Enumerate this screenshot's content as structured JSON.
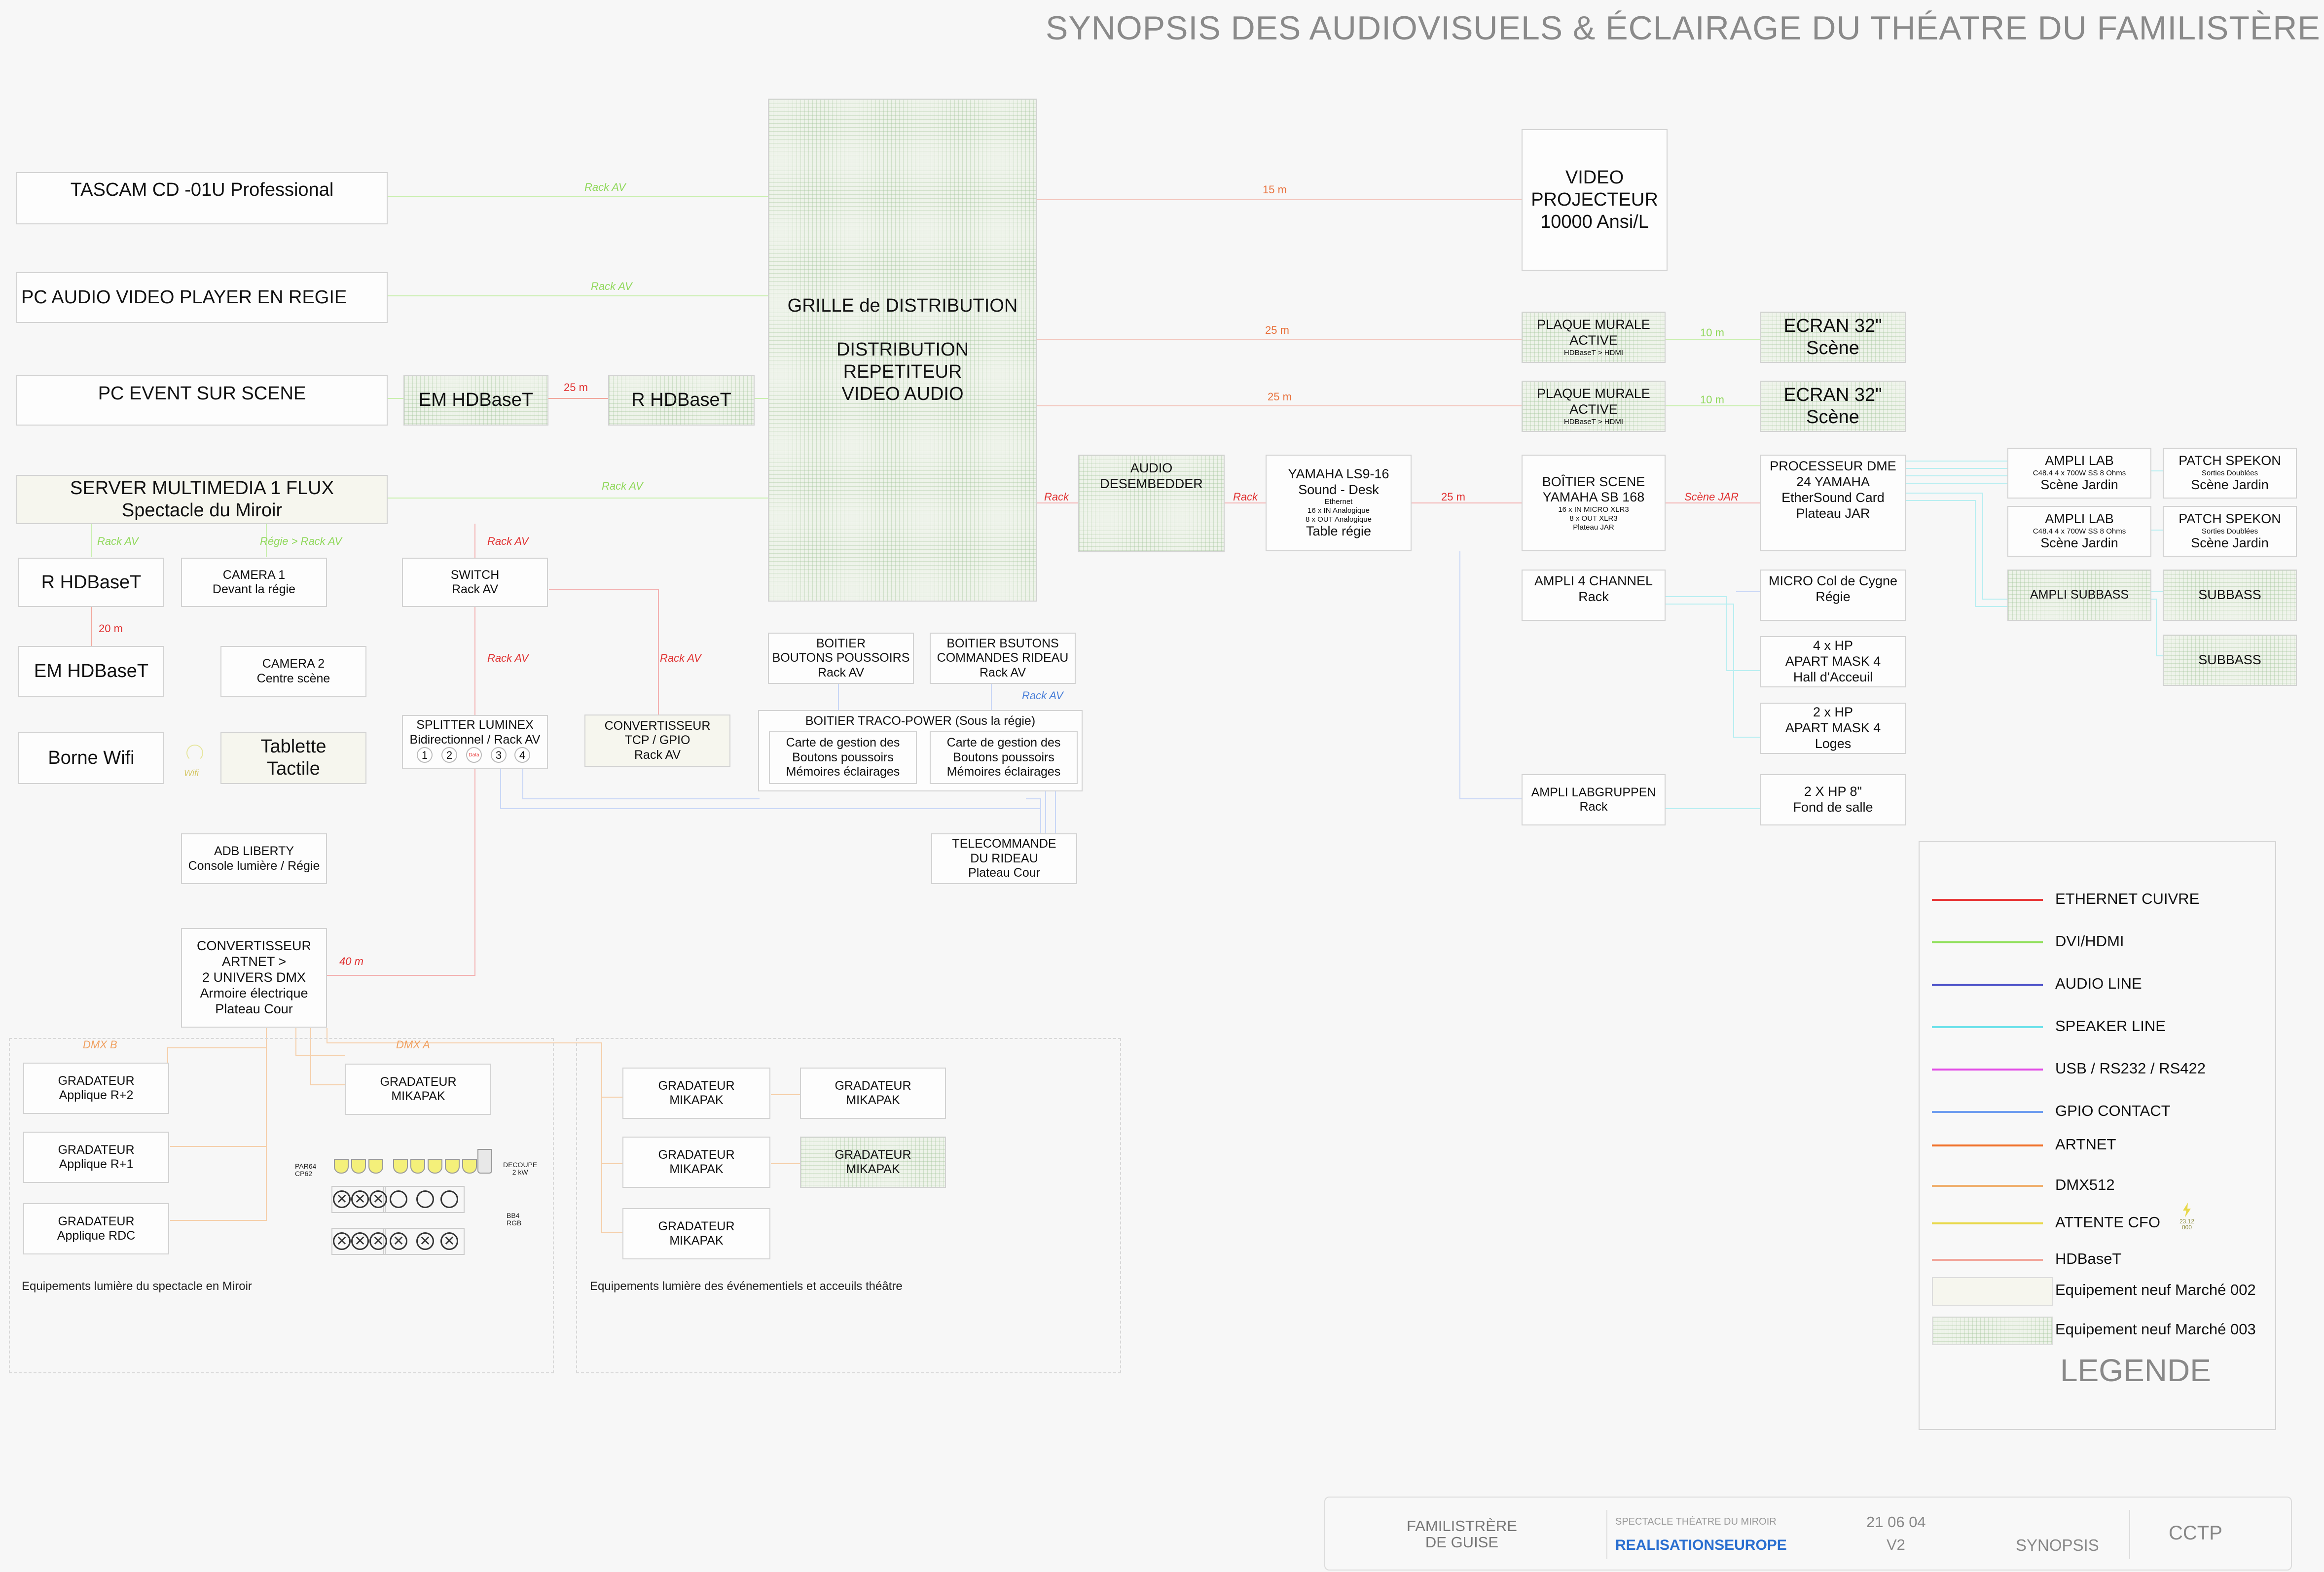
{
  "title": "SYNOPSIS DES AUDIOVISUELS & ÉCLAIRAGE DU THÉATRE  DU FAMILISTÈRE",
  "colors": {
    "ethernet": "#e83a3a",
    "dvi": "#8fe05a",
    "audio": "#4a4fc8",
    "speaker": "#6fe2ea",
    "usb": "#e24be6",
    "gpio": "#6f9ef0",
    "artnet": "#f0712a",
    "dmx": "#f0b070",
    "cfo": "#e8d84a",
    "hdbaset": "#f2a79c"
  },
  "boxes": {
    "tascam": "TASCAM CD -01U Professional",
    "pc_audio": "PC AUDIO VIDEO PLAYER EN REGIE",
    "pc_event": "PC  EVENT  SUR SCENE",
    "em_hdbaset_top": "EM HDBaseT",
    "r_hdbaset_top": "R HDBaseT",
    "server": [
      "SERVER MULTIMEDIA 1 FLUX",
      "Spectacle du Miroir"
    ],
    "r_hdbaset": "R HDBaseT",
    "em_hdbaset": "EM HDBaseT",
    "borne_wifi": "Borne Wifi",
    "camera1": [
      "CAMERA 1",
      "Devant la régie"
    ],
    "camera2": [
      "CAMERA 2",
      "Centre scène"
    ],
    "tablette": [
      "Tablette",
      "Tactile"
    ],
    "switch": [
      "SWITCH",
      "Rack AV"
    ],
    "splitter": [
      "SPLITTER LUMINEX",
      "Bidirectionnel / Rack AV"
    ],
    "splitter_ports": [
      "1",
      "2",
      "Data",
      "3",
      "4"
    ],
    "convertisseur_tcp": [
      "CONVERTISSEUR",
      "TCP / GPIO",
      "Rack AV"
    ],
    "adb": [
      "ADB LIBERTY",
      "Console lumière / Régie"
    ],
    "convertisseur_artnet": [
      "CONVERTISSEUR",
      "ARTNET >",
      "2 UNIVERS DMX",
      "Armoire électrique",
      "Plateau Cour"
    ],
    "grille": [
      "GRILLE de DISTRIBUTION",
      "",
      "DISTRIBUTION",
      "REPETITEUR",
      "VIDEO AUDIO"
    ],
    "boitier_poussoirs": [
      "BOITIER",
      "BOUTONS POUSSOIRS",
      "Rack AV"
    ],
    "boitier_rideau": [
      "BOITIER BSUTONS",
      "COMMANDES RIDEAU",
      "Rack AV"
    ],
    "traco": "BOITIER TRACO-POWER (Sous la régie)",
    "carte1": [
      "Carte de gestion des",
      "Boutons poussoirs",
      "Mémoires éclairages"
    ],
    "carte2": [
      "Carte de gestion des",
      "Boutons poussoirs",
      "Mémoires éclairages"
    ],
    "telecommande": [
      "TELECOMMANDE",
      "DU RIDEAU",
      "Plateau Cour"
    ],
    "audio_desembedder": [
      "AUDIO",
      "DESEMBEDDER"
    ],
    "yamaha_ls9": [
      "YAMAHA LS9-16",
      "Sound - Desk",
      "Ethernet",
      "16 x IN Analogique",
      "8 x OUT Analogique",
      "Table régie"
    ],
    "video_projecteur": [
      "VIDEO",
      "PROJECTEUR",
      "10000 Ansi/L"
    ],
    "plaque1": [
      "PLAQUE MURALE",
      "ACTIVE",
      "HDBaseT > HDMI"
    ],
    "plaque2": [
      "PLAQUE MURALE",
      "ACTIVE",
      "HDBaseT > HDMI"
    ],
    "ecran1": [
      "ECRAN 32\"",
      "Scène"
    ],
    "ecran2": [
      "ECRAN 32\"",
      "Scène"
    ],
    "boitier_scene": [
      "BOÎTIER SCENE",
      "YAMAHA SB 168",
      "16 x IN MICRO XLR3",
      "8 x OUT XLR3",
      "Plateau JAR"
    ],
    "processeur": [
      "PROCESSEUR DME",
      "24 YAMAHA",
      "EtherSound Card",
      "Plateau JAR"
    ],
    "ampli4": [
      "AMPLI 4 CHANNEL",
      "Rack"
    ],
    "micro": [
      "MICRO Col de Cygne",
      "Régie"
    ],
    "hp_hall": [
      "4 x HP",
      "APART MASK 4",
      "Hall d'Acceuil"
    ],
    "hp_loges": [
      "2 x HP",
      "APART MASK 4",
      "Loges"
    ],
    "ampli_labgruppen": [
      "AMPLI LABGRUPPEN",
      "Rack"
    ],
    "hp_salle": [
      "2 X HP 8\"",
      "Fond de salle"
    ],
    "ampli_lab1": [
      "AMPLI LAB",
      "C48.4 4 x 700W SS 8 Ohms",
      "Scène Jardin"
    ],
    "ampli_lab2": [
      "AMPLI LAB",
      "C48.4 4 x 700W SS 8 Ohms",
      "Scène Jardin"
    ],
    "patch1": [
      "PATCH SPEKON",
      "Sorties Doublées",
      "Scène Jardin"
    ],
    "patch2": [
      "PATCH SPEKON",
      "Sorties Doublées",
      "Scène Jardin"
    ],
    "ampli_subbass": "AMPLI SUBBASS",
    "subbass1": "SUBBASS",
    "subbass2": "SUBBASS",
    "grad_r2": [
      "GRADATEUR",
      "Applique R+2"
    ],
    "grad_r1": [
      "GRADATEUR",
      "Applique R+1"
    ],
    "grad_rdc": [
      "GRADATEUR",
      "Applique RDC"
    ],
    "grad_mikapak_a": [
      "GRADATEUR",
      "MIKAPAK"
    ],
    "grad_m1": [
      "GRADATEUR",
      "MIKAPAK"
    ],
    "grad_m2": [
      "GRADATEUR",
      "MIKAPAK"
    ],
    "grad_m3": [
      "GRADATEUR",
      "MIKAPAK"
    ],
    "grad_m4": [
      "GRADATEUR",
      "MIKAPAK"
    ],
    "grad_m5": [
      "GRADATEUR",
      "MIKAPAK"
    ],
    "par64": [
      "PAR64",
      "CP62"
    ],
    "decoupe": [
      "DECOUPE",
      "2 kW"
    ],
    "bb4": [
      "BB4",
      "RGB"
    ]
  },
  "labels": {
    "rack_av": "Rack AV",
    "regie_rack": "Régie > Rack AV",
    "m15": "15 m",
    "m25": "25 m",
    "m10": "10 m",
    "m20": "20 m",
    "m40": "40 m",
    "rack": "Rack",
    "scene_jar": "Scène JAR",
    "wifi": "Wifi",
    "dmx_a": "DMX A",
    "dmx_b": "DMX B"
  },
  "zones": {
    "miroir": "Equipements lumière du spectacle en Miroir",
    "evenementiels": "Equipements lumière des événementiels et acceuils théâtre"
  },
  "legend": {
    "items": [
      {
        "label": "ETHERNET CUIVRE",
        "color": "#e83a3a"
      },
      {
        "label": "DVI/HDMI",
        "color": "#8fe05a"
      },
      {
        "label": "AUDIO LINE",
        "color": "#4a4fc8"
      },
      {
        "label": "SPEAKER LINE",
        "color": "#6fe2ea"
      },
      {
        "label": "USB / RS232 / RS422",
        "color": "#e24be6"
      },
      {
        "label": "GPIO CONTACT",
        "color": "#6f9ef0"
      },
      {
        "label": "ARTNET",
        "color": "#f0712a"
      },
      {
        "label": "DMX512",
        "color": "#f0b070"
      },
      {
        "label": "ATTENTE CFO",
        "color": "#e8d84a"
      },
      {
        "label": "HDBaseT",
        "color": "#f2a79c"
      }
    ],
    "swatch_002": "Equipement neuf Marché 002",
    "swatch_003": "Equipement neuf Marché 003",
    "title": "LEGENDE",
    "cfo_badge": [
      "23.12",
      "000"
    ]
  },
  "footer": {
    "client": [
      "FAMILISTRÈRE",
      "DE GUISE"
    ],
    "project": "SPECTACLE THÉATRE DU MIROIR",
    "company": "REALISATIONSEUROPE",
    "date": "21 06 04",
    "version": "V2",
    "doc": "SYNOPSIS",
    "type": "CCTP"
  }
}
